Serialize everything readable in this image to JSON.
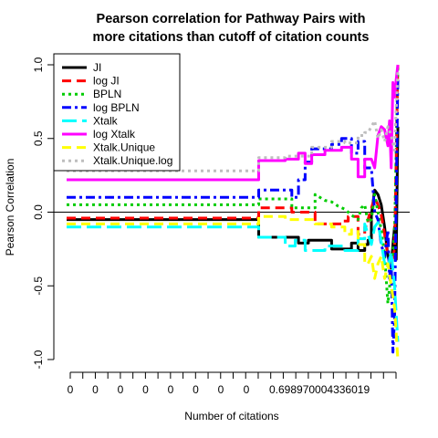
{
  "chart_data": {
    "type": "line",
    "title_line1": "Pearson correlation for Pathway Pairs with",
    "title_line2": "more citations than cutoff of citation counts",
    "xlabel": "Number of citations",
    "ylabel": "Pearson Correlation",
    "ylim": [
      -1.0,
      1.0
    ],
    "y_ticks": [
      {
        "value": 1.0,
        "label": "1.0"
      },
      {
        "value": 0.5,
        "label": "0.5"
      },
      {
        "value": 0.0,
        "label": "0.0"
      },
      {
        "value": -0.5,
        "label": "-0.5"
      },
      {
        "value": -1.0,
        "label": "-1.0"
      }
    ],
    "x_tick_labels": [
      "0",
      "0",
      "0",
      "0",
      "0",
      "0",
      "0",
      "0",
      "0.698970004336019"
    ],
    "grid": false,
    "reference_line_y": 0,
    "legend_position": "top-left",
    "series": [
      {
        "name": "JI",
        "color": "#000000",
        "dash": "solid",
        "points": [
          [
            0,
            -0.05
          ],
          [
            0.58,
            -0.05
          ],
          [
            0.58,
            -0.17
          ],
          [
            0.65,
            -0.17
          ],
          [
            0.7,
            -0.17
          ],
          [
            0.7,
            -0.21
          ],
          [
            0.73,
            -0.21
          ],
          [
            0.73,
            -0.19
          ],
          [
            0.8,
            -0.19
          ],
          [
            0.8,
            -0.25
          ],
          [
            0.86,
            -0.25
          ],
          [
            0.86,
            -0.21
          ],
          [
            0.88,
            -0.21
          ],
          [
            0.88,
            -0.26
          ],
          [
            0.9,
            -0.26
          ],
          [
            0.9,
            -0.22
          ],
          [
            0.91,
            -0.22
          ],
          [
            0.91,
            -0.19
          ],
          [
            0.92,
            -0.19
          ],
          [
            0.92,
            -0.02
          ],
          [
            0.93,
            0.15
          ],
          [
            0.94,
            0.12
          ],
          [
            0.95,
            0.05
          ],
          [
            0.96,
            -0.1
          ],
          [
            0.97,
            -0.3
          ],
          [
            0.98,
            -0.38
          ],
          [
            0.985,
            -0.22
          ],
          [
            0.99,
            -0.1
          ],
          [
            0.995,
            -0.32
          ],
          [
            1.0,
            0.58
          ]
        ]
      },
      {
        "name": "log JI",
        "color": "#ff0000",
        "dash": "dash",
        "points": [
          [
            0,
            -0.04
          ],
          [
            0.58,
            -0.04
          ],
          [
            0.58,
            0.03
          ],
          [
            0.68,
            0.03
          ],
          [
            0.68,
            0.0
          ],
          [
            0.75,
            0.0
          ],
          [
            0.75,
            -0.08
          ],
          [
            0.83,
            -0.08
          ],
          [
            0.83,
            -0.06
          ],
          [
            0.85,
            -0.06
          ],
          [
            0.85,
            -0.03
          ],
          [
            0.88,
            -0.03
          ],
          [
            0.88,
            -0.15
          ],
          [
            0.9,
            -0.15
          ],
          [
            0.9,
            -0.1
          ],
          [
            0.91,
            -0.1
          ],
          [
            0.91,
            -0.05
          ],
          [
            0.93,
            0.1
          ],
          [
            0.94,
            0.05
          ],
          [
            0.95,
            -0.02
          ],
          [
            0.96,
            -0.15
          ],
          [
            0.97,
            -0.3
          ],
          [
            0.98,
            -0.36
          ],
          [
            0.99,
            -0.25
          ],
          [
            1.0,
            1.0
          ]
        ]
      },
      {
        "name": "BPLN",
        "color": "#00cc00",
        "dash": "dot",
        "points": [
          [
            0,
            0.05
          ],
          [
            0.58,
            0.05
          ],
          [
            0.58,
            0.09
          ],
          [
            0.68,
            0.09
          ],
          [
            0.68,
            0.03
          ],
          [
            0.75,
            0.03
          ],
          [
            0.75,
            0.12
          ],
          [
            0.78,
            0.08
          ],
          [
            0.8,
            0.07
          ],
          [
            0.82,
            0.04
          ],
          [
            0.84,
            0.02
          ],
          [
            0.86,
            -0.02
          ],
          [
            0.88,
            -0.05
          ],
          [
            0.89,
            0.03
          ],
          [
            0.9,
            0.05
          ],
          [
            0.91,
            -0.07
          ],
          [
            0.92,
            -0.05
          ],
          [
            0.93,
            0.12
          ],
          [
            0.94,
            0.0
          ],
          [
            0.95,
            -0.12
          ],
          [
            0.96,
            -0.3
          ],
          [
            0.97,
            -0.62
          ],
          [
            0.98,
            -0.4
          ],
          [
            0.99,
            -0.15
          ],
          [
            1.0,
            1.0
          ]
        ]
      },
      {
        "name": "log BPLN",
        "color": "#0000ff",
        "dash": "dashdot",
        "points": [
          [
            0,
            0.1
          ],
          [
            0.58,
            0.1
          ],
          [
            0.58,
            0.15
          ],
          [
            0.68,
            0.15
          ],
          [
            0.68,
            0.1
          ],
          [
            0.7,
            0.1
          ],
          [
            0.7,
            0.22
          ],
          [
            0.72,
            0.22
          ],
          [
            0.72,
            0.34
          ],
          [
            0.74,
            0.34
          ],
          [
            0.74,
            0.43
          ],
          [
            0.8,
            0.43
          ],
          [
            0.8,
            0.46
          ],
          [
            0.83,
            0.46
          ],
          [
            0.83,
            0.5
          ],
          [
            0.86,
            0.5
          ],
          [
            0.86,
            0.4
          ],
          [
            0.88,
            0.4
          ],
          [
            0.88,
            0.48
          ],
          [
            0.9,
            0.48
          ],
          [
            0.9,
            0.3
          ],
          [
            0.92,
            0.3
          ],
          [
            0.93,
            0.0
          ],
          [
            0.94,
            -0.05
          ],
          [
            0.95,
            -0.22
          ],
          [
            0.96,
            -0.3
          ],
          [
            0.97,
            -0.12
          ],
          [
            0.975,
            -0.45
          ],
          [
            0.98,
            -0.3
          ],
          [
            0.985,
            -0.95
          ],
          [
            0.99,
            -0.72
          ],
          [
            1.0,
            0.92
          ]
        ]
      },
      {
        "name": "Xtalk",
        "color": "#00ffff",
        "dash": "longdash",
        "points": [
          [
            0,
            -0.1
          ],
          [
            0.58,
            -0.1
          ],
          [
            0.58,
            -0.17
          ],
          [
            0.66,
            -0.17
          ],
          [
            0.66,
            -0.23
          ],
          [
            0.69,
            -0.23
          ],
          [
            0.69,
            -0.19
          ],
          [
            0.72,
            -0.19
          ],
          [
            0.72,
            -0.26
          ],
          [
            0.78,
            -0.26
          ],
          [
            0.78,
            -0.23
          ],
          [
            0.84,
            -0.23
          ],
          [
            0.84,
            -0.26
          ],
          [
            0.88,
            -0.26
          ],
          [
            0.88,
            -0.18
          ],
          [
            0.9,
            -0.18
          ],
          [
            0.9,
            -0.08
          ],
          [
            0.92,
            -0.22
          ],
          [
            0.93,
            -0.1
          ],
          [
            0.94,
            -0.07
          ],
          [
            0.95,
            -0.2
          ],
          [
            0.96,
            -0.35
          ],
          [
            0.97,
            -0.38
          ],
          [
            0.98,
            -0.27
          ],
          [
            0.99,
            -0.5
          ],
          [
            1.0,
            -0.88
          ]
        ]
      },
      {
        "name": "log Xtalk",
        "color": "#ff00ff",
        "dash": "solid",
        "points": [
          [
            0,
            0.22
          ],
          [
            0.58,
            0.22
          ],
          [
            0.58,
            0.35
          ],
          [
            0.66,
            0.35
          ],
          [
            0.66,
            0.36
          ],
          [
            0.7,
            0.36
          ],
          [
            0.7,
            0.4
          ],
          [
            0.72,
            0.4
          ],
          [
            0.72,
            0.33
          ],
          [
            0.74,
            0.33
          ],
          [
            0.74,
            0.39
          ],
          [
            0.78,
            0.39
          ],
          [
            0.78,
            0.42
          ],
          [
            0.83,
            0.42
          ],
          [
            0.83,
            0.44
          ],
          [
            0.86,
            0.44
          ],
          [
            0.86,
            0.36
          ],
          [
            0.88,
            0.36
          ],
          [
            0.88,
            0.24
          ],
          [
            0.9,
            0.24
          ],
          [
            0.9,
            0.36
          ],
          [
            0.92,
            0.36
          ],
          [
            0.93,
            0.3
          ],
          [
            0.94,
            0.52
          ],
          [
            0.95,
            0.58
          ],
          [
            0.96,
            0.56
          ],
          [
            0.97,
            0.45
          ],
          [
            0.975,
            0.62
          ],
          [
            0.98,
            0.3
          ],
          [
            0.985,
            0.88
          ],
          [
            0.99,
            0.78
          ],
          [
            0.995,
            0.9
          ],
          [
            1.0,
            1.0
          ]
        ]
      },
      {
        "name": "Xtalk.Unique",
        "color": "#ffff00",
        "dash": "dash",
        "points": [
          [
            0,
            -0.08
          ],
          [
            0.58,
            -0.08
          ],
          [
            0.58,
            -0.03
          ],
          [
            0.66,
            -0.03
          ],
          [
            0.66,
            -0.05
          ],
          [
            0.75,
            -0.05
          ],
          [
            0.75,
            -0.08
          ],
          [
            0.8,
            -0.08
          ],
          [
            0.8,
            -0.1
          ],
          [
            0.84,
            -0.1
          ],
          [
            0.84,
            -0.15
          ],
          [
            0.86,
            -0.15
          ],
          [
            0.86,
            -0.12
          ],
          [
            0.88,
            -0.12
          ],
          [
            0.88,
            -0.22
          ],
          [
            0.9,
            -0.22
          ],
          [
            0.9,
            -0.35
          ],
          [
            0.91,
            -0.35
          ],
          [
            0.92,
            -0.3
          ],
          [
            0.93,
            -0.45
          ],
          [
            0.94,
            -0.35
          ],
          [
            0.95,
            -0.3
          ],
          [
            0.96,
            -0.45
          ],
          [
            0.97,
            -0.35
          ],
          [
            0.98,
            -0.5
          ],
          [
            0.99,
            -0.65
          ],
          [
            1.0,
            -1.0
          ]
        ]
      },
      {
        "name": "Xtalk.Unique.log",
        "color": "#bebebe",
        "dash": "dot",
        "points": [
          [
            0,
            0.28
          ],
          [
            0.58,
            0.28
          ],
          [
            0.58,
            0.37
          ],
          [
            0.66,
            0.37
          ],
          [
            0.66,
            0.38
          ],
          [
            0.74,
            0.38
          ],
          [
            0.74,
            0.44
          ],
          [
            0.8,
            0.44
          ],
          [
            0.8,
            0.48
          ],
          [
            0.84,
            0.48
          ],
          [
            0.84,
            0.47
          ],
          [
            0.88,
            0.47
          ],
          [
            0.88,
            0.52
          ],
          [
            0.9,
            0.52
          ],
          [
            0.9,
            0.54
          ],
          [
            0.91,
            0.54
          ],
          [
            0.92,
            0.58
          ],
          [
            0.93,
            0.62
          ],
          [
            0.94,
            0.5
          ],
          [
            0.95,
            0.56
          ],
          [
            0.96,
            0.48
          ],
          [
            0.97,
            0.58
          ],
          [
            0.98,
            0.52
          ],
          [
            0.99,
            0.42
          ],
          [
            1.0,
            0.96
          ]
        ]
      }
    ]
  }
}
